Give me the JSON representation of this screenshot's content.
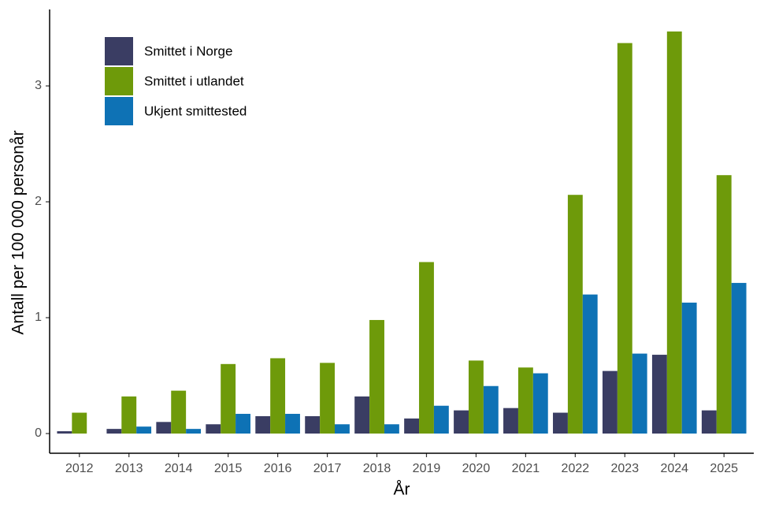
{
  "chart_data": {
    "type": "bar",
    "x_label": "År",
    "y_label": "Antall per 100 000 personår",
    "categories": [
      "2012",
      "2013",
      "2014",
      "2015",
      "2016",
      "2017",
      "2018",
      "2019",
      "2020",
      "2021",
      "2022",
      "2023",
      "2024",
      "2025"
    ],
    "series": [
      {
        "name": "Smittet i Norge",
        "color": "#3a3d63",
        "values": [
          0.02,
          0.04,
          0.1,
          0.08,
          0.15,
          0.15,
          0.32,
          0.13,
          0.2,
          0.22,
          0.18,
          0.54,
          0.68,
          0.2
        ]
      },
      {
        "name": "Smittet i utlandet",
        "color": "#6e9a0a",
        "values": [
          0.18,
          0.32,
          0.37,
          0.6,
          0.65,
          0.61,
          0.98,
          1.48,
          0.63,
          0.57,
          2.06,
          3.37,
          3.47,
          2.23
        ]
      },
      {
        "name": "Ukjent smittested",
        "color": "#0e72b5",
        "values": [
          0,
          0.06,
          0.04,
          0.17,
          0.17,
          0.08,
          0.08,
          0.24,
          0.41,
          0.52,
          1.2,
          0.69,
          1.13,
          1.3
        ]
      }
    ],
    "ylim": [
      -0.17,
      3.66
    ],
    "yticks": [
      0,
      1,
      2,
      3
    ],
    "legend": "top-left"
  }
}
